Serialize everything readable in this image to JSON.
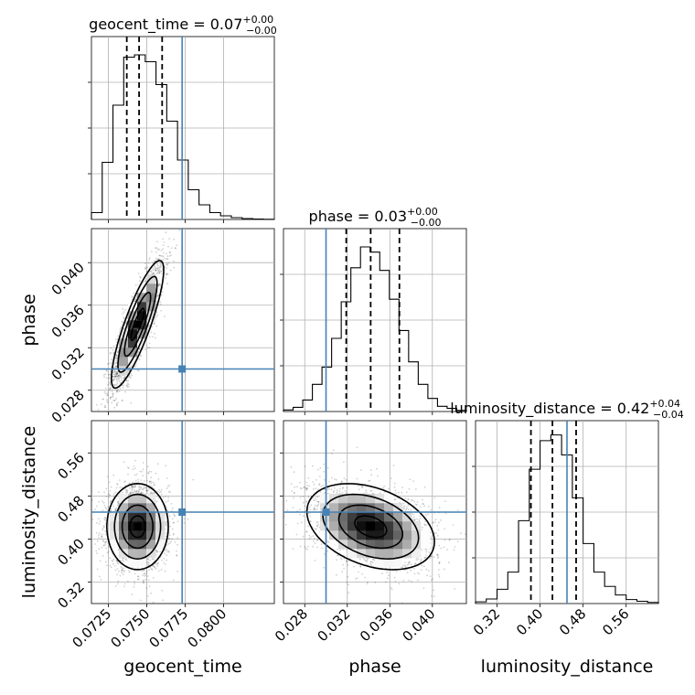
{
  "truth_color": "#4682b4",
  "chart_data": {
    "type": "corner",
    "parameters": [
      "geocent_time",
      "phase",
      "luminosity_distance"
    ],
    "truths": {
      "geocent_time": 0.0773,
      "phase": 0.03,
      "luminosity_distance": 0.45
    },
    "titles": {
      "geocent_time": {
        "name": "geocent_time",
        "value": "0.07",
        "plus": "+0.00",
        "minus": "−0.00"
      },
      "phase": {
        "name": "phase",
        "value": "0.03",
        "plus": "+0.00",
        "minus": "−0.00"
      },
      "luminosity_distance": {
        "name": "luminosity_distance",
        "value": "0.42",
        "plus": "+0.04",
        "minus": "−0.04"
      }
    },
    "axes": {
      "geocent_time": {
        "range": [
          0.0714,
          0.0833
        ],
        "ticks": [
          0.0725,
          0.075,
          0.0775,
          0.08
        ],
        "ticklabels": [
          "0.0725",
          "0.0750",
          "0.0775",
          "0.0800"
        ]
      },
      "phase": {
        "range": [
          0.026,
          0.0432
        ],
        "ticks": [
          0.028,
          0.032,
          0.036,
          0.04
        ],
        "ticklabels": [
          "0.028",
          "0.032",
          "0.036",
          "0.040"
        ]
      },
      "luminosity_distance": {
        "range": [
          0.28,
          0.62
        ],
        "ticks": [
          0.32,
          0.4,
          0.48,
          0.56
        ],
        "ticklabels": [
          "0.32",
          "0.40",
          "0.48",
          "0.56"
        ]
      }
    },
    "histograms": {
      "geocent_time": {
        "quantiles": [
          0.0737,
          0.0745,
          0.076
        ],
        "counts": [
          0.15,
          1.25,
          2.5,
          3.55,
          3.6,
          3.45,
          2.95,
          2.15,
          1.3,
          0.65,
          0.32,
          0.15,
          0.08,
          0.04,
          0.02,
          0.01,
          0.005
        ],
        "ymax": 4.0
      },
      "phase": {
        "quantiles": [
          0.0319,
          0.0342,
          0.0369
        ],
        "counts": [
          0.03,
          0.08,
          0.22,
          0.52,
          0.85,
          1.4,
          2.1,
          2.75,
          3.15,
          3.05,
          2.7,
          2.15,
          1.55,
          0.95,
          0.52,
          0.25,
          0.1,
          0.06,
          0.02
        ],
        "ymax": 3.5
      },
      "luminosity_distance": {
        "quantiles": [
          0.383,
          0.423,
          0.467
        ],
        "counts": [
          0.03,
          0.08,
          0.25,
          0.55,
          1.45,
          2.35,
          2.85,
          2.95,
          2.6,
          1.85,
          1.05,
          0.55,
          0.3,
          0.15,
          0.07,
          0.04,
          0.02
        ],
        "ymax": 3.2
      }
    },
    "pairs": [
      {
        "x": "geocent_time",
        "y": "phase",
        "center": [
          0.0744,
          0.0342
        ],
        "sd": [
          0.00085,
          0.003
        ],
        "corr": 0.85
      },
      {
        "x": "geocent_time",
        "y": "luminosity_distance",
        "center": [
          0.0744,
          0.423
        ],
        "sd": [
          0.001,
          0.04
        ],
        "corr": 0.0
      },
      {
        "x": "phase",
        "y": "luminosity_distance",
        "center": [
          0.0342,
          0.423
        ],
        "sd": [
          0.003,
          0.04
        ],
        "corr": -0.35
      }
    ]
  }
}
